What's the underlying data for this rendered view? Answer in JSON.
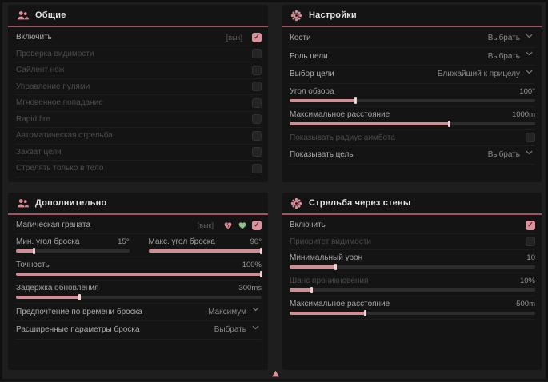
{
  "window": {
    "bg": "#1e1e1e",
    "panel_bg": "#141414",
    "accent": "#d8939b",
    "accent_line": "#9e5660",
    "slider_fill": "#cf8d95"
  },
  "icons": {
    "check": "✓"
  },
  "panels": [
    {
      "title": "Общие",
      "icon": "users-icon",
      "rows": [
        {
          "type": "checkbox",
          "label": "Включить",
          "hint": "[вык]",
          "checked": true,
          "dim": false
        },
        {
          "type": "checkbox",
          "label": "Проверка видимости",
          "checked": false,
          "dim": true
        },
        {
          "type": "checkbox",
          "label": "Сайлент нож",
          "checked": false,
          "dim": true
        },
        {
          "type": "checkbox",
          "label": "Управление пулями",
          "checked": false,
          "dim": true
        },
        {
          "type": "checkbox",
          "label": "Мгновенное попадание",
          "checked": false,
          "dim": true
        },
        {
          "type": "checkbox",
          "label": "Rapid fire",
          "checked": false,
          "dim": true
        },
        {
          "type": "checkbox",
          "label": "Автоматическая стрельба",
          "checked": false,
          "dim": true
        },
        {
          "type": "checkbox",
          "label": "Захват цели",
          "checked": false,
          "dim": true
        },
        {
          "type": "checkbox",
          "label": "Стрелять только в тело",
          "checked": false,
          "dim": true
        }
      ]
    },
    {
      "title": "Настройки",
      "icon": "gear-icon",
      "rows": [
        {
          "type": "select",
          "label": "Кости",
          "value": "Выбрать",
          "dim": false
        },
        {
          "type": "select",
          "label": "Роль цели",
          "value": "Выбрать",
          "dim": false
        },
        {
          "type": "select",
          "label": "Выбор цели",
          "value": "Ближайший к прицелу",
          "dim": false
        },
        {
          "type": "slider",
          "label": "Угол обзора",
          "value": "100°",
          "percent": 27,
          "dim": false
        },
        {
          "type": "slider",
          "label": "Максимальное расстояние",
          "value": "1000m",
          "percent": 65,
          "dim": false
        },
        {
          "type": "checkbox",
          "label": "Показывать радиус аимбота",
          "checked": false,
          "dim": true
        },
        {
          "type": "select",
          "label": "Показывать цель",
          "value": "Выбрать",
          "dim": false
        }
      ]
    },
    {
      "title": "Дополнительно",
      "icon": "users-icon",
      "rows": [
        {
          "type": "checkbox",
          "label": "Магическая граната",
          "hint": "[вык]",
          "checked": true,
          "dim": false,
          "extra_icons": [
            {
              "name": "heart-broken-icon",
              "color": "#dd8d97"
            },
            {
              "name": "heart-icon",
              "color": "#8fc08a"
            }
          ]
        },
        {
          "type": "slider-pair",
          "left": {
            "label": "Мин. угол броска",
            "value": "15°",
            "percent": 16
          },
          "right": {
            "label": "Макс. угол броска",
            "value": "90°",
            "percent": 100
          }
        },
        {
          "type": "slider",
          "label": "Точность",
          "value": "100%",
          "percent": 100,
          "dim": false
        },
        {
          "type": "slider",
          "label": "Задержка обновления",
          "value": "300ms",
          "percent": 26,
          "dim": false
        },
        {
          "type": "select",
          "label": "Предпочтение по времени броска",
          "value": "Максимум",
          "dim": false
        },
        {
          "type": "select",
          "label": "Расширенные параметры броска",
          "value": "Выбрать",
          "dim": false
        }
      ]
    },
    {
      "title": "Стрельба через стены",
      "icon": "gear-icon",
      "rows": [
        {
          "type": "checkbox",
          "label": "Включить",
          "checked": true,
          "dim": false
        },
        {
          "type": "checkbox",
          "label": "Приоритет видимости",
          "checked": false,
          "dim": true
        },
        {
          "type": "slider",
          "label": "Минимальный урон",
          "value": "10",
          "percent": 19,
          "dim": false
        },
        {
          "type": "slider",
          "label": "Шанс проникновения",
          "value": "10%",
          "percent": 9,
          "dim": true
        },
        {
          "type": "slider",
          "label": "Максимальное расстояние",
          "value": "500m",
          "percent": 31,
          "dim": false
        }
      ]
    }
  ]
}
